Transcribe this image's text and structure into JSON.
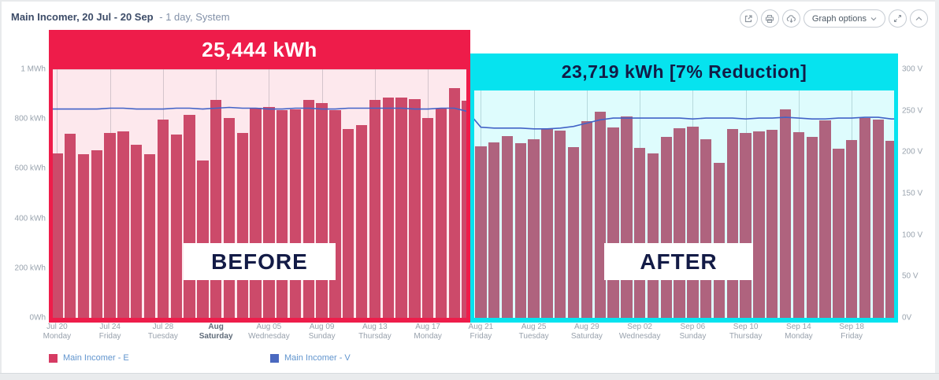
{
  "header": {
    "title": "Main Incomer, 20 Jul - 20 Sep",
    "subtitle": "- 1 day, System"
  },
  "toolbar": {
    "graph_options_label": "Graph options",
    "icon_names": [
      "export-icon",
      "print-icon",
      "cloud-download-icon",
      "chevron-down-icon",
      "resize-diagonal-icon",
      "chevron-up-icon"
    ]
  },
  "colors": {
    "bar": "#c9506e",
    "voltage_line": "#4263c7",
    "before_frame": "#ee1c4a",
    "after_frame": "#06e3ef",
    "before_tint": "rgba(238,28,74,0.10)",
    "after_tint": "rgba(0,229,238,0.13)",
    "legend_e_swatch": "#d63b63",
    "legend_v_swatch": "#4a69c0"
  },
  "chart_data": {
    "type": "bar",
    "bar_count": 64,
    "left_axis": {
      "unit": "kWh",
      "range": [
        0,
        1000
      ],
      "tick_labels": [
        "0Wh",
        "200 kWh",
        "400 kWh",
        "600 kWh",
        "800 kWh",
        "1 MWh"
      ]
    },
    "right_axis": {
      "unit": "V",
      "range": [
        0,
        300
      ],
      "tick_labels": [
        "0V",
        "50 V",
        "100 V",
        "150 V",
        "200 V",
        "250 V",
        "300 V"
      ]
    },
    "x_ticks": [
      {
        "bar_index": 0,
        "date": "Jul 20",
        "day": "Monday",
        "bold": false
      },
      {
        "bar_index": 4,
        "date": "Jul 24",
        "day": "Friday",
        "bold": false
      },
      {
        "bar_index": 8,
        "date": "Jul 28",
        "day": "Tuesday",
        "bold": false
      },
      {
        "bar_index": 12,
        "date": "Aug",
        "day": "Saturday",
        "bold": true
      },
      {
        "bar_index": 16,
        "date": "Aug 05",
        "day": "Wednesday",
        "bold": false
      },
      {
        "bar_index": 20,
        "date": "Aug 09",
        "day": "Sunday",
        "bold": false
      },
      {
        "bar_index": 24,
        "date": "Aug 13",
        "day": "Thursday",
        "bold": false
      },
      {
        "bar_index": 28,
        "date": "Aug 17",
        "day": "Monday",
        "bold": false
      },
      {
        "bar_index": 32,
        "date": "Aug 21",
        "day": "Friday",
        "bold": false
      },
      {
        "bar_index": 36,
        "date": "Aug 25",
        "day": "Tuesday",
        "bold": false
      },
      {
        "bar_index": 40,
        "date": "Aug 29",
        "day": "Saturday",
        "bold": false
      },
      {
        "bar_index": 44,
        "date": "Sep 02",
        "day": "Wednesday",
        "bold": false
      },
      {
        "bar_index": 48,
        "date": "Sep 06",
        "day": "Sunday",
        "bold": false
      },
      {
        "bar_index": 52,
        "date": "Sep 10",
        "day": "Thursday",
        "bold": false
      },
      {
        "bar_index": 56,
        "date": "Sep 14",
        "day": "Monday",
        "bold": false
      },
      {
        "bar_index": 60,
        "date": "Sep 18",
        "day": "Friday",
        "bold": false
      }
    ],
    "series": [
      {
        "name": "Main Incomer - E",
        "type": "bar",
        "axis": "left",
        "unit": "kWh",
        "values": [
          660,
          742,
          658,
          675,
          744,
          750,
          697,
          658,
          796,
          738,
          817,
          633,
          877,
          805,
          744,
          844,
          847,
          835,
          838,
          877,
          865,
          835,
          760,
          775,
          877,
          886,
          886,
          880,
          805,
          841,
          925,
          874,
          690,
          705,
          732,
          702,
          718,
          760,
          753,
          687,
          790,
          829,
          766,
          811,
          684,
          660,
          727,
          763,
          769,
          718,
          624,
          760,
          745,
          751,
          757,
          839,
          748,
          729,
          793,
          681,
          714,
          805,
          797,
          712
        ]
      },
      {
        "name": "Main Incomer - V",
        "type": "line",
        "axis": "right",
        "unit": "V",
        "values": [
          252,
          252,
          252,
          252,
          253,
          253,
          252,
          252,
          252,
          253,
          253,
          252,
          253,
          254,
          253,
          253,
          252,
          252,
          253,
          253,
          252,
          252,
          253,
          253,
          253,
          253,
          253,
          252,
          252,
          253,
          253,
          249,
          230,
          229,
          229,
          229,
          228,
          228,
          229,
          231,
          235,
          239,
          241,
          241,
          241,
          241,
          241,
          241,
          240,
          241,
          241,
          241,
          240,
          241,
          241,
          242,
          241,
          240,
          240,
          241,
          241,
          242,
          242,
          240
        ]
      }
    ],
    "regions": [
      {
        "label": "BEFORE",
        "total": "25,444 kWh",
        "bar_start": 0,
        "bar_end": 31
      },
      {
        "label": "AFTER",
        "total": "23,719 kWh [7% Reduction]",
        "bar_start": 32,
        "bar_end": 63
      }
    ]
  },
  "legend": [
    {
      "label": "Main Incomer - E"
    },
    {
      "label": "Main Incomer - V"
    }
  ]
}
